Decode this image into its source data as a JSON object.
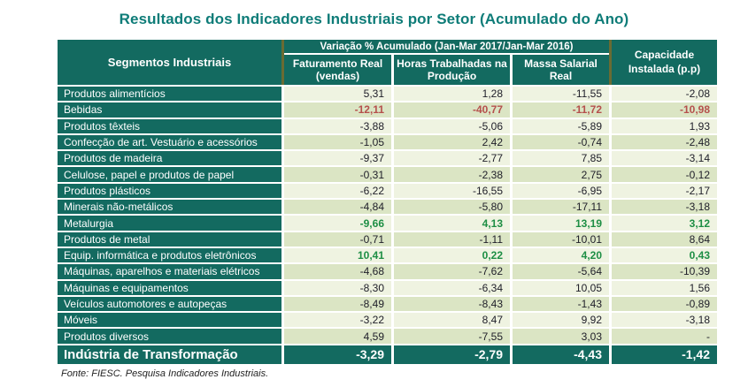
{
  "title": "Resultados dos Indicadores Industriais por Setor (Acumulado do Ano)",
  "colors": {
    "teal_dark": "#136a60",
    "title_teal": "#0e7c78",
    "row_light": "#eff3e1",
    "row_dark": "#dbe5c4",
    "value_red": "#b5504c",
    "value_green": "#1d8e44",
    "value_text": "#20202a",
    "border_olive": "#6a6b33"
  },
  "table": {
    "segment_header": "Segmentos Industriais",
    "group_header": "Variação % Acumulado (Jan-Mar 2017/Jan-Mar 2016)",
    "sub_headers": [
      "Faturamento Real (vendas)",
      "Horas Trabalhadas na Produção",
      "Massa Salarial Real"
    ],
    "capacity_header": "Capacidade Instalada (p.p)",
    "rows": [
      {
        "name": "Produtos alimentícios",
        "values": [
          "5,31",
          "1,28",
          "-11,55",
          "-2,08"
        ],
        "color": null
      },
      {
        "name": "Bebidas",
        "values": [
          "-12,11",
          "-40,77",
          "-11,72",
          "-10,98"
        ],
        "color": "red"
      },
      {
        "name": "Produtos têxteis",
        "values": [
          "-3,88",
          "-5,06",
          "-5,89",
          "1,93"
        ],
        "color": null
      },
      {
        "name": "Confecção de art. Vestuário e acessórios",
        "values": [
          "-1,05",
          "2,42",
          "-0,74",
          "-2,48"
        ],
        "color": null
      },
      {
        "name": "Produtos de madeira",
        "values": [
          "-9,37",
          "-2,77",
          "7,85",
          "-3,14"
        ],
        "color": null
      },
      {
        "name": "Celulose, papel e produtos de papel",
        "values": [
          "-0,31",
          "-2,38",
          "2,75",
          "-0,12"
        ],
        "color": null
      },
      {
        "name": "Produtos plásticos",
        "values": [
          "-6,22",
          "-16,55",
          "-6,95",
          "-2,17"
        ],
        "color": null
      },
      {
        "name": "Minerais não-metálicos",
        "values": [
          "-4,84",
          "-5,80",
          "-17,11",
          "-3,18"
        ],
        "color": null
      },
      {
        "name": "Metalurgia",
        "values": [
          "-9,66",
          "4,13",
          "13,19",
          "3,12"
        ],
        "color": "green"
      },
      {
        "name": "Produtos de metal",
        "values": [
          "-0,71",
          "-1,11",
          "-10,01",
          "8,64"
        ],
        "color": null
      },
      {
        "name": "Equip. informática e produtos eletrônicos",
        "values": [
          "10,41",
          "0,22",
          "4,20",
          "0,43"
        ],
        "color": "green"
      },
      {
        "name": "Máquinas, aparelhos e materiais elétricos",
        "values": [
          "-4,68",
          "-7,62",
          "-5,64",
          "-10,39"
        ],
        "color": null
      },
      {
        "name": "Máquinas e equipamentos",
        "values": [
          "-8,30",
          "-6,34",
          "10,05",
          "1,56"
        ],
        "color": null
      },
      {
        "name": "Veículos automotores e autopeças",
        "values": [
          "-8,49",
          "-8,43",
          "-1,43",
          "-0,89"
        ],
        "color": null
      },
      {
        "name": "Móveis",
        "values": [
          "-3,22",
          "8,47",
          "9,92",
          "-3,18"
        ],
        "color": null
      },
      {
        "name": "Produtos diversos",
        "values": [
          "4,59",
          "-7,55",
          "3,03",
          "-"
        ],
        "color": null
      }
    ],
    "total_row": {
      "name": "Indústria de Transformação",
      "values": [
        "-3,29",
        "-2,79",
        "-4,43",
        "-1,42"
      ]
    }
  },
  "footer": {
    "source": "Fonte: FIESC. Pesquisa Indicadores Industriais."
  }
}
